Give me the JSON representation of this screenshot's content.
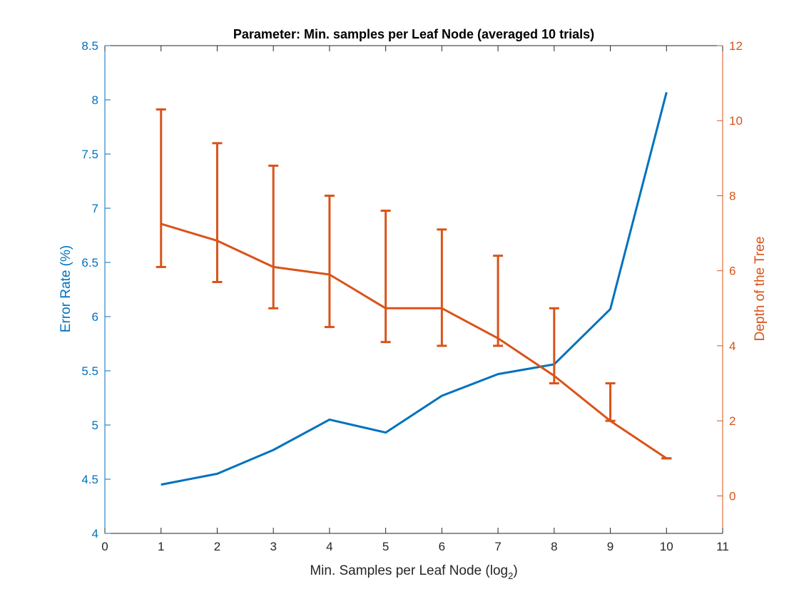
{
  "chart_data": {
    "type": "line",
    "title": "Parameter: Min. samples per Leaf Node (averaged 10 trials)",
    "xlabel": "Min. Samples per Leaf Node (log",
    "xlabel_subscript": "2",
    "xlabel_suffix": ")",
    "ylabel_left": "Error Rate (%)",
    "ylabel_right": "Depth of the Tree",
    "xlim": [
      0,
      11
    ],
    "ylim_left": [
      4,
      8.5
    ],
    "ylim_right": [
      -1,
      12
    ],
    "x_ticks": [
      "0",
      "1",
      "2",
      "3",
      "4",
      "5",
      "6",
      "7",
      "8",
      "9",
      "10",
      "11"
    ],
    "y_left_ticks": [
      "4",
      "4.5",
      "5",
      "5.5",
      "6",
      "6.5",
      "7",
      "7.5",
      "8",
      "8.5"
    ],
    "y_right_ticks": [
      "0",
      "2",
      "4",
      "6",
      "8",
      "10",
      "12"
    ],
    "grid": false,
    "colors": {
      "left": "#0072BD",
      "right": "#D95319",
      "axes": "#262626"
    },
    "series": [
      {
        "axis": "left",
        "x": [
          1,
          2,
          3,
          4,
          5,
          6,
          7,
          8,
          9,
          10
        ],
        "values": [
          4.45,
          4.55,
          4.77,
          5.05,
          4.93,
          5.27,
          5.47,
          5.56,
          6.07,
          8.07
        ]
      },
      {
        "axis": "right",
        "x": [
          1,
          2,
          3,
          4,
          5,
          6,
          7,
          8,
          9,
          10
        ],
        "values": [
          7.25,
          6.8,
          6.1,
          5.9,
          5.0,
          5.0,
          4.2,
          3.2,
          2.0,
          1.0
        ],
        "error_low": [
          6.1,
          5.7,
          5.0,
          4.5,
          4.1,
          4.0,
          4.0,
          3.0,
          2.0,
          1.0
        ],
        "error_high": [
          10.3,
          9.4,
          8.8,
          8.0,
          7.6,
          7.1,
          6.4,
          5.0,
          3.0,
          1.0
        ]
      }
    ]
  }
}
